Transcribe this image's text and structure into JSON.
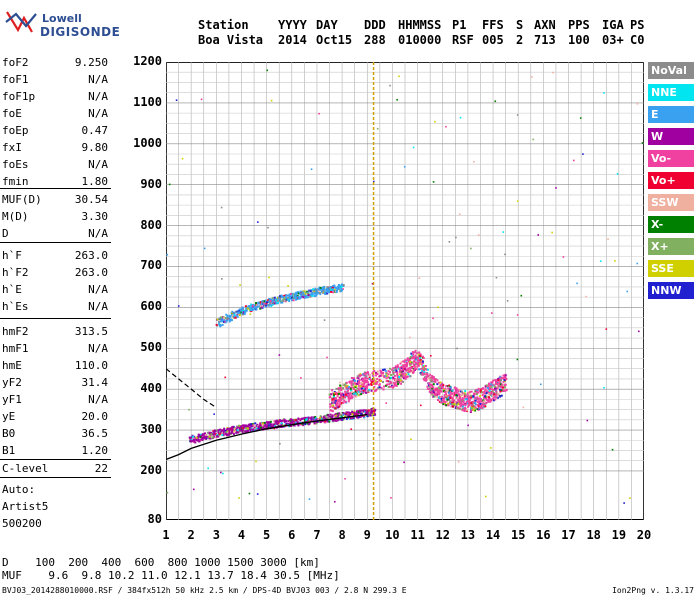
{
  "logo": {
    "line1": "Lowell",
    "line2": "DIGISONDE"
  },
  "header": {
    "labels": [
      "Station",
      "YYYY",
      "DAY",
      "DDD",
      "HHMMSS",
      "P1",
      "FFS",
      "S",
      "AXN",
      "PPS",
      "IGA",
      "PS"
    ],
    "values": [
      "Boa Vista",
      "2014",
      "Oct15",
      "288",
      "010000",
      "RSF",
      "005",
      "2",
      "713",
      "100",
      "03+",
      "C0"
    ]
  },
  "params": [
    {
      "label": "foF2",
      "value": "9.250"
    },
    {
      "label": "foF1",
      "value": "N/A"
    },
    {
      "label": "foF1p",
      "value": "N/A"
    },
    {
      "label": "foE",
      "value": "N/A"
    },
    {
      "label": "foEp",
      "value": "0.47"
    },
    {
      "label": "fxI",
      "value": "9.80"
    },
    {
      "label": "foEs",
      "value": "N/A"
    },
    {
      "label": "fmin",
      "value": "1.80"
    },
    {
      "label": "MUF(D)",
      "value": "30.54"
    },
    {
      "label": "M(D)",
      "value": "3.30"
    },
    {
      "label": "D",
      "value": "N/A"
    },
    {
      "label": "h`F",
      "value": "263.0"
    },
    {
      "label": "h`F2",
      "value": "263.0"
    },
    {
      "label": "h`E",
      "value": "N/A"
    },
    {
      "label": "h`Es",
      "value": "N/A"
    },
    {
      "label": "hmF2",
      "value": "313.5"
    },
    {
      "label": "hmF1",
      "value": "N/A"
    },
    {
      "label": "hmE",
      "value": "110.0"
    },
    {
      "label": "yF2",
      "value": "31.4"
    },
    {
      "label": "yF1",
      "value": "N/A"
    },
    {
      "label": "yE",
      "value": "20.0"
    },
    {
      "label": "B0",
      "value": "36.5"
    },
    {
      "label": "B1",
      "value": "1.20"
    },
    {
      "label": "C-level",
      "value": "22"
    }
  ],
  "autoscale": {
    "line1": "Auto:",
    "line2": "Artist5",
    "line3": "500200"
  },
  "legend": [
    {
      "label": "NoVal",
      "bg": "#8c8c8c",
      "fg": "#ffffff"
    },
    {
      "label": "NNE",
      "bg": "#00e5f0",
      "fg": "#ffffff"
    },
    {
      "label": "E",
      "bg": "#3aa0f0",
      "fg": "#ffffff"
    },
    {
      "label": "W",
      "bg": "#a000a0",
      "fg": "#ffffff"
    },
    {
      "label": "Vo-",
      "bg": "#f040a0",
      "fg": "#ffffff"
    },
    {
      "label": "Vo+",
      "bg": "#f00030",
      "fg": "#ffffff"
    },
    {
      "label": "SSW",
      "bg": "#f0b0a0",
      "fg": "#ffffff"
    },
    {
      "label": "X-",
      "bg": "#008000",
      "fg": "#ffffff"
    },
    {
      "label": "X+",
      "bg": "#80b060",
      "fg": "#ffffff"
    },
    {
      "label": "SSE",
      "bg": "#d0d000",
      "fg": "#ffffff"
    },
    {
      "label": "NNW",
      "bg": "#2020d0",
      "fg": "#ffffff"
    }
  ],
  "bottom": {
    "d_label": "D",
    "d_values": "100  200  400  600  800 1000 1500 3000 [km]",
    "muf_label": "MUF",
    "muf_values": "9.6  9.8 10.2 11.0 12.1 13.7 18.4 30.5 [MHz]",
    "footer": "BVJ03_2014288010000.RSF / 384fx512h 50 kHz 2.5 km / DPS-4D BVJ03 003 / 2.8 N 299.3 E",
    "version": "Ion2Png v. 1.3.17"
  },
  "chart_data": {
    "type": "scatter",
    "xlim": [
      1,
      20
    ],
    "ylim": [
      80,
      1200
    ],
    "x_ticks": [
      "1",
      "2",
      "3",
      "4",
      "5",
      "6",
      "7",
      "8",
      "9",
      "10",
      "11",
      "12",
      "13",
      "14",
      "15",
      "16",
      "17",
      "18",
      "19",
      "20"
    ],
    "y_ticks": [
      "80",
      "200",
      "300",
      "400",
      "500",
      "600",
      "700",
      "800",
      "900",
      "1000",
      "1100",
      "1200"
    ],
    "grid": true,
    "traces": [
      {
        "name": "O-trace F2",
        "color": "#a000a0",
        "x": [
          1.9,
          2.5,
          3.0,
          3.5,
          4.0,
          4.5,
          5.0,
          5.5,
          6.0,
          6.5,
          7.0,
          7.5,
          8.0,
          8.5,
          9.0,
          9.25
        ],
        "y": [
          275,
          282,
          290,
          296,
          302,
          306,
          310,
          315,
          318,
          320,
          324,
          328,
          332,
          336,
          340,
          345
        ]
      },
      {
        "name": "second hop",
        "color": "#3aa0f0",
        "x": [
          3.0,
          3.5,
          4.0,
          4.5,
          5.0,
          5.5,
          6.0,
          6.5,
          7.0,
          7.5,
          8.0
        ],
        "y": [
          560,
          575,
          590,
          600,
          610,
          618,
          625,
          630,
          638,
          642,
          648
        ]
      },
      {
        "name": "spread F",
        "color": "#f040a0",
        "x": [
          7.5,
          8.0,
          8.5,
          9.0,
          10.0,
          10.5,
          11.0,
          11.5,
          12.0,
          12.5,
          13.0,
          13.5,
          14.0,
          14.5
        ],
        "y": [
          360,
          380,
          400,
          410,
          420,
          440,
          470,
          400,
          380,
          370,
          360,
          370,
          390,
          410
        ]
      }
    ],
    "profile_curve": {
      "x": [
        1.0,
        1.5,
        2.0,
        3.0,
        4.0,
        5.0,
        6.0,
        7.0,
        8.0,
        9.0
      ],
      "y": [
        228,
        240,
        255,
        275,
        290,
        303,
        313,
        322,
        330,
        338
      ]
    },
    "dashed_curve": {
      "x": [
        1.0,
        1.5,
        2.0,
        2.5,
        3.0
      ],
      "y": [
        450,
        425,
        400,
        375,
        355
      ]
    },
    "vertical_marker_x": 9.25
  }
}
